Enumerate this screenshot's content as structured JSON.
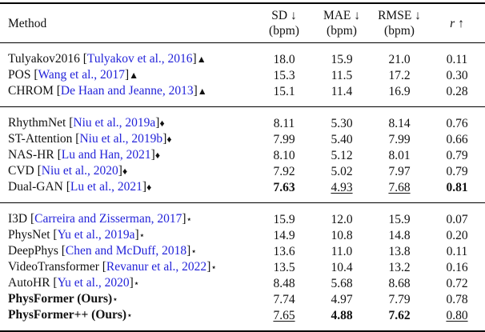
{
  "colors": {
    "citation": "#2323d9",
    "text": "#111111",
    "rule": "#000000"
  },
  "header": {
    "method": "Method",
    "metrics": [
      {
        "top": "SD ↓",
        "bottom": "(bpm)"
      },
      {
        "top": "MAE ↓",
        "bottom": "(bpm)"
      },
      {
        "top": "RMSE ↓",
        "bottom": "(bpm)"
      },
      {
        "top": "r ↑",
        "bottom": ""
      }
    ]
  },
  "groups": [
    {
      "rows": [
        {
          "method": "Tulyakov2016",
          "cite": "Tulyakov et al., 2016",
          "marker": "▲",
          "bold": false,
          "values": [
            "18.0",
            "15.9",
            "21.0",
            "0.11"
          ],
          "styles": [
            "",
            "",
            "",
            ""
          ]
        },
        {
          "method": "POS",
          "cite": "Wang et al., 2017",
          "marker": "▲",
          "bold": false,
          "values": [
            "15.3",
            "11.5",
            "17.2",
            "0.30"
          ],
          "styles": [
            "",
            "",
            "",
            ""
          ]
        },
        {
          "method": "CHROM",
          "cite": "De Haan and Jeanne, 2013",
          "marker": "▲",
          "bold": false,
          "values": [
            "15.1",
            "11.4",
            "16.9",
            "0.28"
          ],
          "styles": [
            "",
            "",
            "",
            ""
          ]
        }
      ]
    },
    {
      "rows": [
        {
          "method": "RhythmNet",
          "cite": "Niu et al., 2019a",
          "marker": "♦",
          "bold": false,
          "values": [
            "8.11",
            "5.30",
            "8.14",
            "0.76"
          ],
          "styles": [
            "",
            "",
            "",
            ""
          ]
        },
        {
          "method": "ST-Attention",
          "cite": "Niu et al., 2019b",
          "marker": "♦",
          "bold": false,
          "values": [
            "7.99",
            "5.40",
            "7.99",
            "0.66"
          ],
          "styles": [
            "",
            "",
            "",
            ""
          ]
        },
        {
          "method": "NAS-HR",
          "cite": "Lu and Han, 2021",
          "marker": "♦",
          "bold": false,
          "values": [
            "8.10",
            "5.12",
            "8.01",
            "0.79"
          ],
          "styles": [
            "",
            "",
            "",
            ""
          ]
        },
        {
          "method": "CVD",
          "cite": "Niu et al., 2020",
          "marker": "♦",
          "bold": false,
          "values": [
            "7.92",
            "5.02",
            "7.97",
            "0.79"
          ],
          "styles": [
            "",
            "",
            "",
            ""
          ]
        },
        {
          "method": "Dual-GAN",
          "cite": "Lu et al., 2021",
          "marker": "♦",
          "bold": false,
          "values": [
            "7.63",
            "4.93",
            "7.68",
            "0.81"
          ],
          "styles": [
            "b",
            "u",
            "u",
            "b"
          ]
        }
      ]
    },
    {
      "rows": [
        {
          "method": "I3D",
          "cite": "Carreira and Zisserman, 2017",
          "marker": "⋆",
          "bold": false,
          "values": [
            "15.9",
            "12.0",
            "15.9",
            "0.07"
          ],
          "styles": [
            "",
            "",
            "",
            ""
          ]
        },
        {
          "method": "PhysNet",
          "cite": "Yu et al., 2019a",
          "marker": "⋆",
          "bold": false,
          "values": [
            "14.9",
            "10.8",
            "14.8",
            "0.20"
          ],
          "styles": [
            "",
            "",
            "",
            ""
          ]
        },
        {
          "method": "DeepPhys",
          "cite": "Chen and McDuff, 2018",
          "marker": "⋆",
          "bold": false,
          "values": [
            "13.6",
            "11.0",
            "13.8",
            "0.11"
          ],
          "styles": [
            "",
            "",
            "",
            ""
          ]
        },
        {
          "method": "VideoTransformer",
          "cite": "Revanur et al., 2022",
          "marker": "⋆",
          "bold": false,
          "values": [
            "13.5",
            "10.4",
            "13.2",
            "0.16"
          ],
          "styles": [
            "",
            "",
            "",
            ""
          ]
        },
        {
          "method": "AutoHR",
          "cite": "Yu et al., 2020",
          "marker": "⋆",
          "bold": false,
          "values": [
            "8.48",
            "5.68",
            "8.68",
            "0.72"
          ],
          "styles": [
            "",
            "",
            "",
            ""
          ]
        },
        {
          "method": "PhysFormer (Ours)",
          "cite": "",
          "marker": "⋆",
          "bold": true,
          "values": [
            "7.74",
            "4.97",
            "7.79",
            "0.78"
          ],
          "styles": [
            "",
            "",
            "",
            ""
          ]
        },
        {
          "method": "PhysFormer++ (Ours)",
          "cite": "",
          "marker": "⋆",
          "bold": true,
          "values": [
            "7.65",
            "4.88",
            "7.62",
            "0.80"
          ],
          "styles": [
            "u",
            "b",
            "b",
            "u"
          ]
        }
      ]
    }
  ]
}
